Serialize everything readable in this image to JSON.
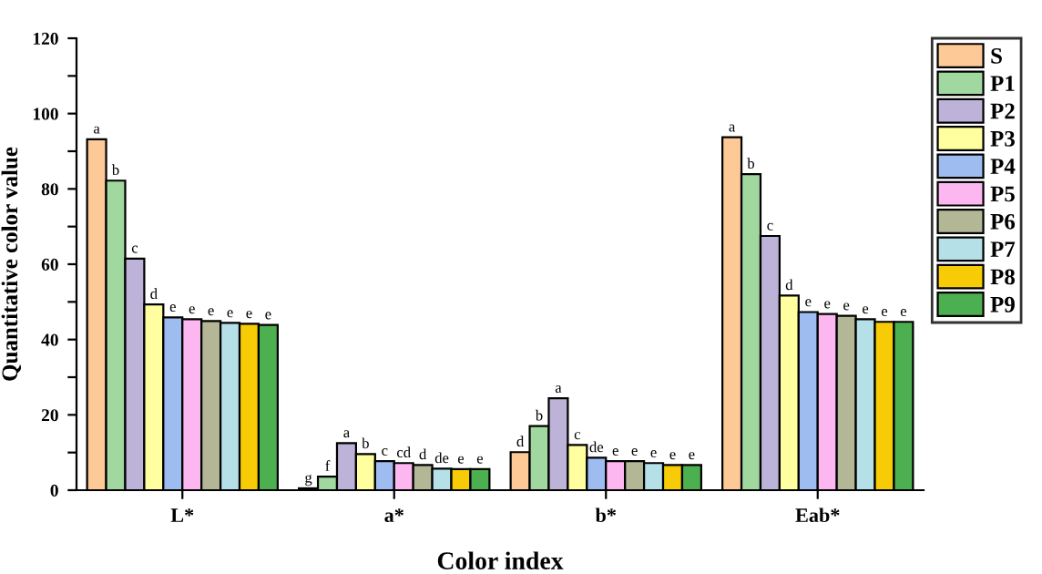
{
  "chart_data": {
    "type": "bar",
    "xlabel": "Color index",
    "ylabel": "Quantitative color value",
    "categories": [
      "L*",
      "a*",
      "b*",
      "Eab*"
    ],
    "ylim": [
      0,
      120
    ],
    "yticks": [
      0,
      {
        "value": 10,
        "label": null
      },
      20,
      {
        "value": 30,
        "label": null
      },
      40,
      {
        "value": 50,
        "label": null
      },
      60,
      {
        "value": 70,
        "label": null
      },
      80,
      {
        "value": 90,
        "label": null
      },
      100,
      {
        "value": 110,
        "label": null
      },
      120
    ],
    "legend": "top right",
    "grid": false,
    "series": [
      {
        "name": "S",
        "color": "#fdc996",
        "values": [
          93.2,
          0.5,
          10.1,
          93.7
        ],
        "value_labels": [
          "a",
          "g",
          "d",
          "a"
        ]
      },
      {
        "name": "P1",
        "color": "#a0d89f",
        "values": [
          82.2,
          3.6,
          17.0,
          83.9
        ],
        "value_labels": [
          "b",
          "f",
          "b",
          "b"
        ]
      },
      {
        "name": "P2",
        "color": "#bdb2d8",
        "values": [
          61.5,
          12.5,
          24.4,
          67.5
        ],
        "value_labels": [
          "c",
          "a",
          "a",
          "c"
        ]
      },
      {
        "name": "P3",
        "color": "#ffff9f",
        "values": [
          49.3,
          9.6,
          12.0,
          51.7
        ],
        "value_labels": [
          "d",
          "b",
          "c",
          "d"
        ]
      },
      {
        "name": "P4",
        "color": "#9ebcf0",
        "values": [
          45.9,
          7.7,
          8.6,
          47.3
        ],
        "value_labels": [
          "e",
          "c",
          "de",
          "e"
        ]
      },
      {
        "name": "P5",
        "color": "#fcb6f0",
        "values": [
          45.4,
          7.2,
          7.7,
          46.8
        ],
        "value_labels": [
          "e",
          "cd",
          "e",
          "e"
        ]
      },
      {
        "name": "P6",
        "color": "#b3b795",
        "values": [
          44.9,
          6.7,
          7.7,
          46.3
        ],
        "value_labels": [
          "e",
          "d",
          "e",
          "e"
        ]
      },
      {
        "name": "P7",
        "color": "#b6e0e8",
        "values": [
          44.4,
          5.7,
          7.2,
          45.4
        ],
        "value_labels": [
          "e",
          "de",
          "e",
          "e"
        ]
      },
      {
        "name": "P8",
        "color": "#f7cb05",
        "values": [
          44.2,
          5.6,
          6.7,
          44.7
        ],
        "value_labels": [
          "e",
          "e",
          "e",
          "e"
        ]
      },
      {
        "name": "P9",
        "color": "#4caf50",
        "values": [
          43.9,
          5.6,
          6.7,
          44.7
        ],
        "value_labels": [
          "e",
          "e",
          "e",
          "e"
        ]
      }
    ]
  }
}
